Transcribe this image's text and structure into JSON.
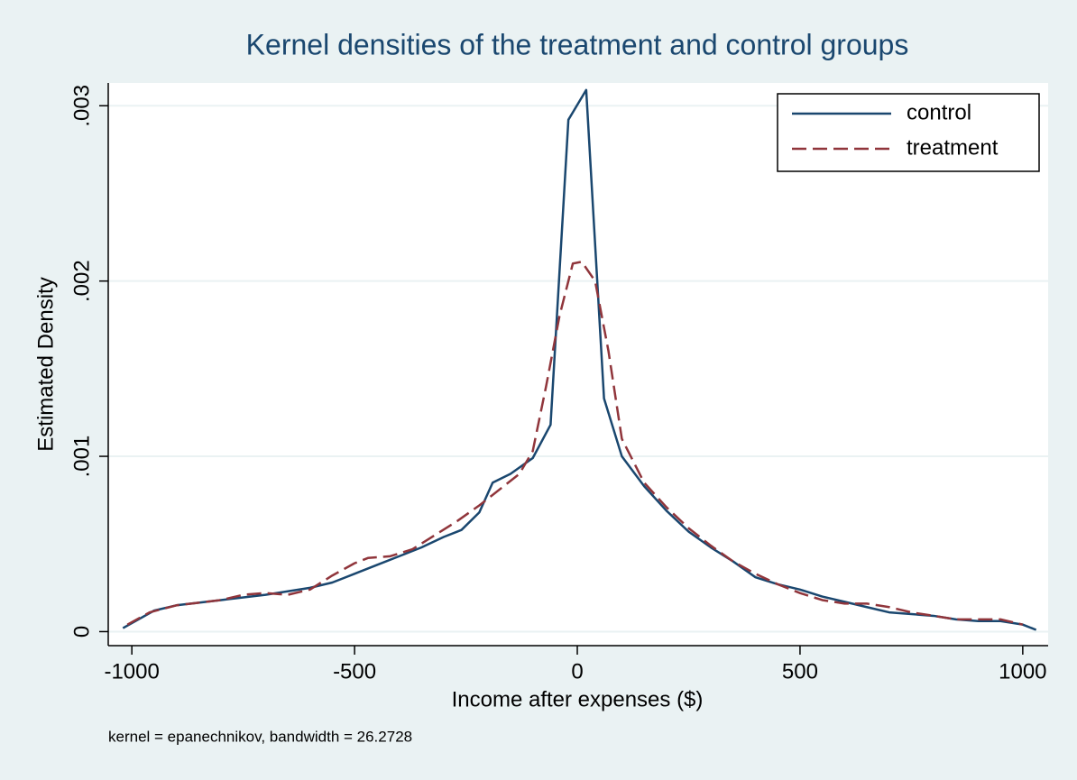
{
  "chart_data": {
    "type": "line",
    "title": "Kernel densities of the treatment and control groups",
    "x_label": "Income after expenses ($)",
    "y_label": "Estimated Density",
    "note": "kernel = epanechnikov, bandwidth = 26.2728",
    "xlim": [
      -1053,
      1057
    ],
    "ylim": [
      -8e-05,
      0.00313
    ],
    "xticks": [
      -1000,
      -500,
      0,
      500,
      1000
    ],
    "yticks": [
      0,
      {
        "value": 0.001,
        "label": ".001"
      },
      {
        "value": 0.002,
        "label": ".002"
      },
      {
        "value": 0.003,
        "label": ".003"
      }
    ],
    "grid": true,
    "legend": "top-right",
    "series": [
      {
        "name": "control",
        "color": "#1a476f",
        "line_style": "solid",
        "x": [
          -1020,
          -950,
          -900,
          -800,
          -700,
          -600,
          -550,
          -500,
          -450,
          -400,
          -350,
          -300,
          -260,
          -220,
          -190,
          -150,
          -100,
          -60,
          -20,
          20,
          60,
          100,
          150,
          200,
          250,
          300,
          350,
          400,
          450,
          500,
          550,
          600,
          650,
          700,
          800,
          850,
          900,
          950,
          1000,
          1030
        ],
        "values": [
          2e-05,
          0.00012,
          0.00015,
          0.00018,
          0.00021,
          0.00025,
          0.00028,
          0.00033,
          0.00038,
          0.00043,
          0.00048,
          0.00054,
          0.00058,
          0.00068,
          0.00085,
          0.0009,
          0.00099,
          0.00118,
          0.00292,
          0.00309,
          0.00133,
          0.001,
          0.00083,
          0.00069,
          0.00057,
          0.00048,
          0.0004,
          0.00031,
          0.00027,
          0.00024,
          0.0002,
          0.00017,
          0.00014,
          0.00011,
          9e-05,
          7e-05,
          6e-05,
          6e-05,
          4e-05,
          1e-05
        ]
      },
      {
        "name": "treatment",
        "color": "#90353b",
        "line_style": "dashed",
        "x": [
          -1010,
          -960,
          -900,
          -800,
          -750,
          -700,
          -650,
          -600,
          -550,
          -500,
          -470,
          -420,
          -370,
          -320,
          -270,
          -220,
          -170,
          -130,
          -100,
          -70,
          -40,
          -10,
          10,
          40,
          70,
          100,
          150,
          200,
          250,
          300,
          350,
          400,
          450,
          500,
          550,
          600,
          650,
          700,
          750,
          800,
          850,
          900,
          950,
          1000
        ],
        "values": [
          4e-05,
          0.00011,
          0.00015,
          0.00018,
          0.00021,
          0.00022,
          0.00021,
          0.00024,
          0.00032,
          0.00039,
          0.00042,
          0.00043,
          0.00047,
          0.00055,
          0.00063,
          0.00072,
          0.00082,
          0.0009,
          0.00103,
          0.0014,
          0.0018,
          0.0021,
          0.00211,
          0.002,
          0.0016,
          0.0011,
          0.00085,
          0.00071,
          0.00059,
          0.00049,
          0.0004,
          0.00033,
          0.00027,
          0.00022,
          0.00018,
          0.00016,
          0.00016,
          0.00014,
          0.00011,
          9e-05,
          7e-05,
          7e-05,
          7e-05,
          4e-05
        ]
      }
    ]
  }
}
